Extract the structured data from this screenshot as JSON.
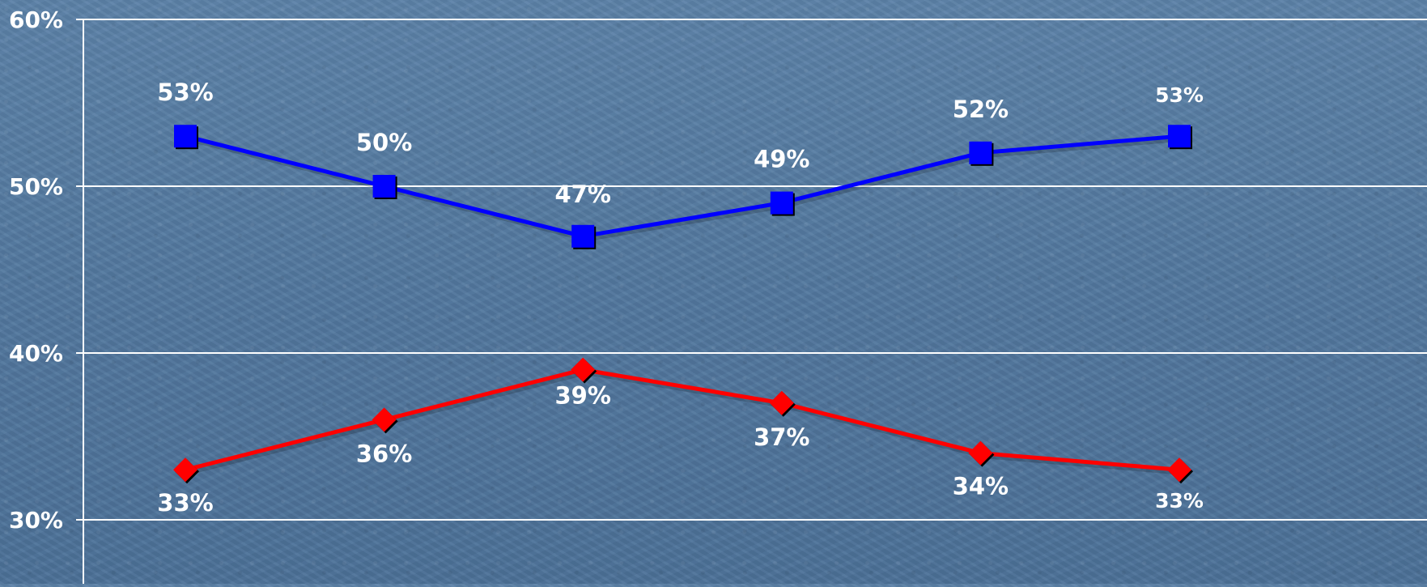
{
  "chart_data": {
    "type": "line",
    "categories": [
      "",
      "",
      "",
      "",
      "",
      ""
    ],
    "series": [
      {
        "color": "#0000ff",
        "marker": "square",
        "values": [
          53,
          50,
          47,
          49,
          52,
          53
        ],
        "labels": [
          "53%",
          "50%",
          "47%",
          "49%",
          "52%",
          "53%"
        ]
      },
      {
        "color": "#ff0000",
        "marker": "diamond",
        "values": [
          33,
          36,
          39,
          37,
          34,
          33
        ],
        "labels": [
          "33%",
          "36%",
          "39%",
          "37%",
          "34%",
          "33%"
        ]
      }
    ],
    "y_ticks": [
      {
        "value": 60,
        "label": "60%"
      },
      {
        "value": 50,
        "label": "50%"
      },
      {
        "value": 40,
        "label": "40%"
      },
      {
        "value": 30,
        "label": "30%"
      }
    ],
    "ylim": [
      30,
      60
    ],
    "grid": true,
    "legend": "none",
    "colors": {
      "gridline": "#ffffff",
      "text": "#ffffff",
      "background": "#557aa1"
    }
  }
}
